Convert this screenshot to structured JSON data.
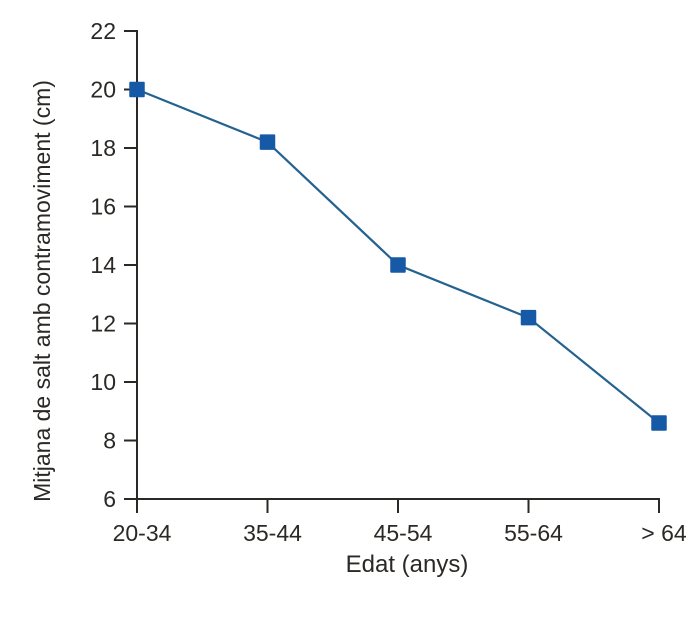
{
  "chart_data": {
    "type": "line",
    "title": "",
    "categories": [
      "20-34",
      "35-44",
      "45-54",
      "55-64",
      "> 64"
    ],
    "values": [
      20,
      18.2,
      14,
      12.2,
      8.6
    ],
    "xlabel": "Edat (anys)",
    "ylabel": "Mitjana de salt amb contramoviment (cm)",
    "ylim": [
      6,
      22
    ],
    "yticks": [
      22,
      20,
      18,
      16,
      14,
      12,
      10,
      8,
      6
    ],
    "grid": false,
    "legend": "none",
    "marker": "square",
    "colors": {
      "marker": "#1659a6",
      "line": "#24628f",
      "axis": "#2b2926",
      "text": "#2b2926",
      "background": "#ffffff"
    }
  }
}
